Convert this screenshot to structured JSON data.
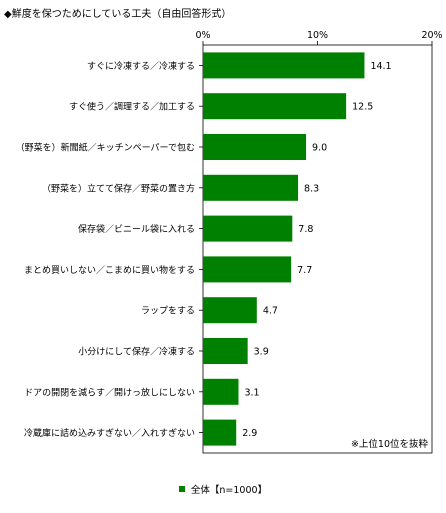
{
  "title": "◆鮮度を保つためにしている工夫（自由回答形式）",
  "note": "※上位10位を抜粋",
  "chart_data": {
    "type": "bar",
    "orientation": "horizontal",
    "categories": [
      "すぐに冷凍する／冷凍する",
      "すぐ使う／調理する／加工する",
      "（野菜を）新聞紙／キッチンペーパーで包む",
      "（野菜を）立てて保存／野菜の置き方",
      "保存袋／ビニール袋に入れる",
      "まとめ買いしない／こまめに買い物をする",
      "ラップをする",
      "小分けにして保存／冷凍する",
      "ドアの開閉を減らす／開けっ放しにしない",
      "冷蔵庫に詰め込みすぎない／入れすぎない"
    ],
    "series": [
      {
        "name": "全体【n=1000】",
        "values": [
          14.1,
          12.5,
          9.0,
          8.3,
          7.8,
          7.7,
          4.7,
          3.9,
          3.1,
          2.9
        ],
        "labels": [
          "14.1",
          "12.5",
          "9.0",
          "8.3",
          "7.8",
          "7.7",
          "4.7",
          "3.9",
          "3.1",
          "2.9"
        ]
      }
    ],
    "xlim": [
      0,
      20
    ],
    "ticks": [
      "0%",
      "10%",
      "20%"
    ],
    "tick_values": [
      0,
      10,
      20
    ],
    "bar_color": "#008000",
    "grid": false,
    "legend_position": "bottom"
  }
}
